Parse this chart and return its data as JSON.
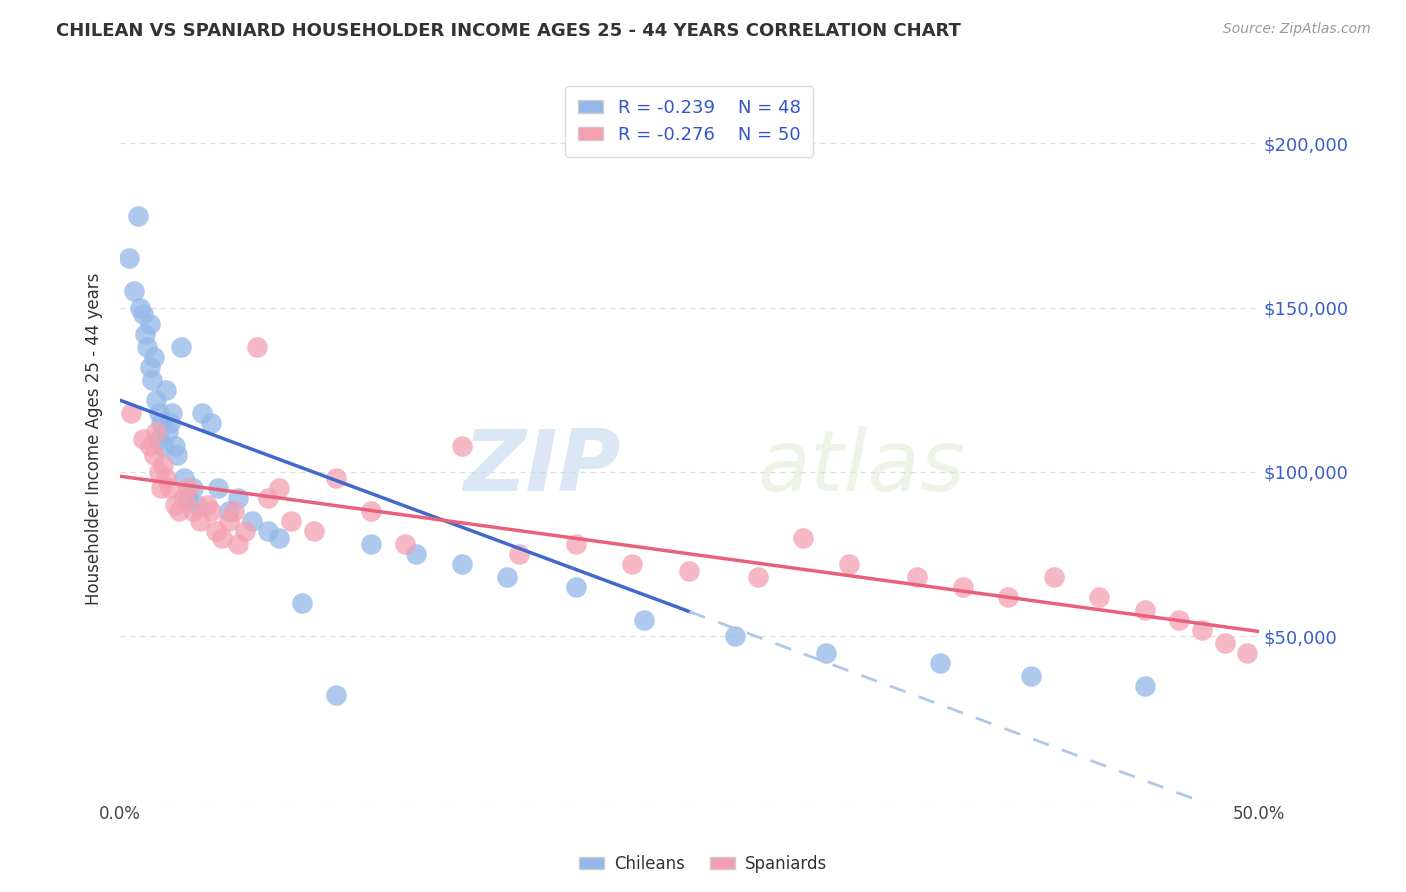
{
  "title": "CHILEAN VS SPANIARD HOUSEHOLDER INCOME AGES 25 - 44 YEARS CORRELATION CHART",
  "source": "Source: ZipAtlas.com",
  "ylabel": "Householder Income Ages 25 - 44 years",
  "xlim": [
    0.0,
    0.5
  ],
  "ylim": [
    0,
    220000
  ],
  "yticks": [
    0,
    50000,
    100000,
    150000,
    200000
  ],
  "ytick_labels": [
    "",
    "$50,000",
    "$100,000",
    "$150,000",
    "$200,000"
  ],
  "xticks": [
    0.0,
    0.1,
    0.2,
    0.3,
    0.4,
    0.5
  ],
  "xtick_labels": [
    "0.0%",
    "",
    "",
    "",
    "",
    "50.0%"
  ],
  "background_color": "#ffffff",
  "grid_color": "#dddddd",
  "color_chilean": "#93b8e8",
  "color_spaniard": "#f4a0b0",
  "color_blue_line": "#4169cd",
  "color_pink_line": "#e8607a",
  "color_dashed": "#b0c8e8",
  "watermark_zip": "ZIP",
  "watermark_atlas": "atlas",
  "chilean_x": [
    0.004,
    0.006,
    0.008,
    0.009,
    0.01,
    0.011,
    0.012,
    0.013,
    0.013,
    0.014,
    0.015,
    0.016,
    0.017,
    0.017,
    0.018,
    0.019,
    0.02,
    0.021,
    0.022,
    0.023,
    0.024,
    0.025,
    0.027,
    0.028,
    0.03,
    0.032,
    0.034,
    0.036,
    0.04,
    0.043,
    0.048,
    0.052,
    0.058,
    0.065,
    0.07,
    0.08,
    0.095,
    0.11,
    0.13,
    0.15,
    0.17,
    0.2,
    0.23,
    0.27,
    0.31,
    0.36,
    0.4,
    0.45
  ],
  "chilean_y": [
    165000,
    155000,
    178000,
    150000,
    148000,
    142000,
    138000,
    145000,
    132000,
    128000,
    135000,
    122000,
    118000,
    110000,
    115000,
    108000,
    125000,
    112000,
    115000,
    118000,
    108000,
    105000,
    138000,
    98000,
    92000,
    95000,
    90000,
    118000,
    115000,
    95000,
    88000,
    92000,
    85000,
    82000,
    80000,
    60000,
    32000,
    78000,
    75000,
    72000,
    68000,
    65000,
    55000,
    50000,
    45000,
    42000,
    38000,
    35000
  ],
  "spaniard_x": [
    0.005,
    0.01,
    0.013,
    0.015,
    0.016,
    0.017,
    0.018,
    0.019,
    0.02,
    0.022,
    0.024,
    0.026,
    0.028,
    0.03,
    0.032,
    0.035,
    0.038,
    0.04,
    0.042,
    0.045,
    0.048,
    0.05,
    0.052,
    0.055,
    0.06,
    0.065,
    0.07,
    0.075,
    0.085,
    0.095,
    0.11,
    0.125,
    0.15,
    0.175,
    0.2,
    0.225,
    0.25,
    0.28,
    0.3,
    0.32,
    0.35,
    0.37,
    0.39,
    0.41,
    0.43,
    0.45,
    0.465,
    0.475,
    0.485,
    0.495
  ],
  "spaniard_y": [
    118000,
    110000,
    108000,
    105000,
    112000,
    100000,
    95000,
    102000,
    98000,
    95000,
    90000,
    88000,
    92000,
    95000,
    88000,
    85000,
    90000,
    88000,
    82000,
    80000,
    85000,
    88000,
    78000,
    82000,
    138000,
    92000,
    95000,
    85000,
    82000,
    98000,
    88000,
    78000,
    108000,
    75000,
    78000,
    72000,
    70000,
    68000,
    80000,
    72000,
    68000,
    65000,
    62000,
    68000,
    62000,
    58000,
    55000,
    52000,
    48000,
    45000
  ]
}
